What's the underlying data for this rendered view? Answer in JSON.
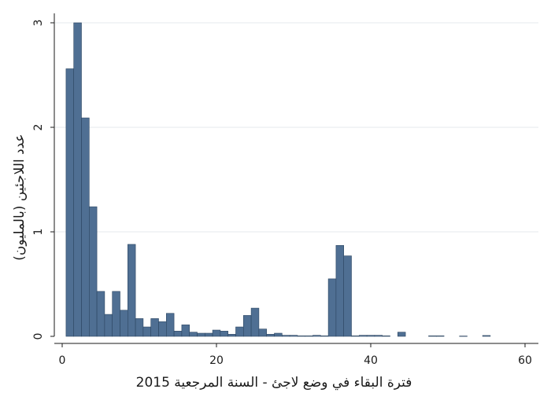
{
  "chart_data": {
    "type": "bar",
    "xlabel": "فترة البقاء في وضع لاجئ - السنة المرجعية 2015",
    "ylabel": "عدد اللاجئين (بالمليون)",
    "xlim": [
      0,
      61
    ],
    "ylim": [
      0,
      3
    ],
    "xticks": [
      "0",
      "20",
      "40",
      "60"
    ],
    "yticks": [
      "0",
      "1",
      "2",
      "3"
    ],
    "grid": true,
    "bin_width": 1,
    "bins": [
      {
        "x": 1,
        "value": 2.56
      },
      {
        "x": 2,
        "value": 3.0
      },
      {
        "x": 3,
        "value": 2.09
      },
      {
        "x": 4,
        "value": 1.24
      },
      {
        "x": 5,
        "value": 0.43
      },
      {
        "x": 6,
        "value": 0.21
      },
      {
        "x": 7,
        "value": 0.43
      },
      {
        "x": 8,
        "value": 0.25
      },
      {
        "x": 9,
        "value": 0.88
      },
      {
        "x": 10,
        "value": 0.17
      },
      {
        "x": 11,
        "value": 0.09
      },
      {
        "x": 12,
        "value": 0.17
      },
      {
        "x": 13,
        "value": 0.14
      },
      {
        "x": 14,
        "value": 0.22
      },
      {
        "x": 15,
        "value": 0.05
      },
      {
        "x": 16,
        "value": 0.11
      },
      {
        "x": 17,
        "value": 0.04
      },
      {
        "x": 18,
        "value": 0.03
      },
      {
        "x": 19,
        "value": 0.03
      },
      {
        "x": 20,
        "value": 0.06
      },
      {
        "x": 21,
        "value": 0.05
      },
      {
        "x": 22,
        "value": 0.02
      },
      {
        "x": 23,
        "value": 0.09
      },
      {
        "x": 24,
        "value": 0.2
      },
      {
        "x": 25,
        "value": 0.27
      },
      {
        "x": 26,
        "value": 0.07
      },
      {
        "x": 27,
        "value": 0.02
      },
      {
        "x": 28,
        "value": 0.03
      },
      {
        "x": 29,
        "value": 0.01
      },
      {
        "x": 30,
        "value": 0.01
      },
      {
        "x": 31,
        "value": 0.005
      },
      {
        "x": 32,
        "value": 0.005
      },
      {
        "x": 33,
        "value": 0.01
      },
      {
        "x": 34,
        "value": 0.005
      },
      {
        "x": 35,
        "value": 0.55
      },
      {
        "x": 36,
        "value": 0.87
      },
      {
        "x": 37,
        "value": 0.77
      },
      {
        "x": 38,
        "value": 0.005
      },
      {
        "x": 39,
        "value": 0.01
      },
      {
        "x": 40,
        "value": 0.01
      },
      {
        "x": 41,
        "value": 0.01
      },
      {
        "x": 42,
        "value": 0.005
      },
      {
        "x": 44,
        "value": 0.04
      },
      {
        "x": 48,
        "value": 0.005
      },
      {
        "x": 49,
        "value": 0.005
      },
      {
        "x": 52,
        "value": 0.003
      },
      {
        "x": 55,
        "value": 0.008
      }
    ],
    "colors": {
      "bar_fill": "#4f6f93",
      "bar_stroke": "#2c4561",
      "grid": "#e4e8ee"
    }
  }
}
